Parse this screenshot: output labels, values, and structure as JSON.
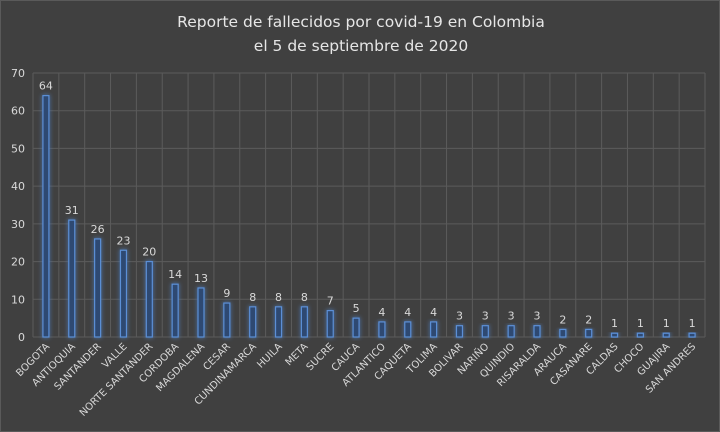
{
  "chart_data": {
    "type": "bar",
    "title": [
      "Reporte de fallecidos por covid-19 en Colombia",
      "el 5 de septiembre de 2020"
    ],
    "xlabel": "",
    "ylabel": "",
    "ylim": [
      0,
      70
    ],
    "yticks": [
      0,
      10,
      20,
      30,
      40,
      50,
      60,
      70
    ],
    "grid": true,
    "legend": "none",
    "categories": [
      "BOGOTA",
      "ANTIOQUIA",
      "SANTANDER",
      "VALLE",
      "NORTE SANTANDER",
      "CORDOBA",
      "MAGDALENA",
      "CESAR",
      "CUNDINAMARCA",
      "HUILA",
      "META",
      "SUCRE",
      "CAUCA",
      "ATLANTICO",
      "CAQUETA",
      "TOLIMA",
      "BOLIVAR",
      "NARIÑO",
      "QUINDIO",
      "RISARALDA",
      "ARAUCA",
      "CASANARE",
      "CALDAS",
      "CHOCO",
      "GUAJIRA",
      "SAN ANDRES"
    ],
    "values": [
      64,
      31,
      26,
      23,
      20,
      14,
      13,
      9,
      8,
      8,
      8,
      7,
      5,
      4,
      4,
      4,
      3,
      3,
      3,
      3,
      2,
      2,
      1,
      1,
      1,
      1
    ],
    "colors": {
      "background": "#404040",
      "grid": "#5b5b5b",
      "bar_fill": "#2e4a72",
      "bar_stroke": "#5b8fd6",
      "text": "#d9d9d9"
    }
  }
}
